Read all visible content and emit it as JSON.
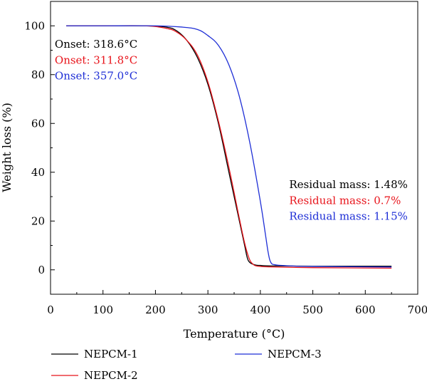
{
  "chart_data": {
    "type": "line",
    "xlabel": "Temperature (°C)",
    "ylabel": "Weight loss (%)",
    "xlim": [
      0,
      700
    ],
    "ylim": [
      -10,
      110
    ],
    "xticks": [
      0,
      100,
      200,
      300,
      400,
      500,
      600,
      700
    ],
    "yticks": [
      0,
      20,
      40,
      60,
      80,
      100
    ],
    "grid": false,
    "legend_position": "bottom",
    "annotations": [
      {
        "text": "Onset: 318.6°C",
        "color": "#000000",
        "x": 8,
        "y": 91
      },
      {
        "text": "Onset: 311.8°C",
        "color": "#e8141b",
        "x": 8,
        "y": 84.5
      },
      {
        "text": "Onset: 357.0°C",
        "color": "#1f2fd6",
        "x": 8,
        "y": 78
      },
      {
        "text": "Residual mass: 1.48%",
        "color": "#000000",
        "x": 455,
        "y": 33.5
      },
      {
        "text": "Residual mass: 0.7%",
        "color": "#e8141b",
        "x": 455,
        "y": 27
      },
      {
        "text": "Residual mass: 1.15%",
        "color": "#1f2fd6",
        "x": 455,
        "y": 20.5
      }
    ],
    "series": [
      {
        "name": "NEPCM-1",
        "color": "#000000",
        "x": [
          30,
          100,
          180,
          220,
          240,
          260,
          280,
          300,
          320,
          340,
          360,
          370,
          375,
          380,
          390,
          400,
          420,
          500,
          650
        ],
        "y": [
          100,
          100,
          100,
          99.5,
          98,
          94,
          87,
          76,
          60,
          40,
          20,
          10,
          5,
          3,
          2,
          1.8,
          1.6,
          1.5,
          1.48
        ]
      },
      {
        "name": "NEPCM-2",
        "color": "#e8141b",
        "x": [
          30,
          100,
          180,
          220,
          240,
          260,
          280,
          300,
          320,
          340,
          360,
          370,
          378,
          385,
          395,
          420,
          500,
          650
        ],
        "y": [
          100,
          100,
          100,
          99,
          97.5,
          94,
          88,
          77,
          61,
          42,
          21,
          11,
          5,
          2.5,
          1.5,
          1.2,
          0.9,
          0.7
        ]
      },
      {
        "name": "NEPCM-3",
        "color": "#1f2fd6",
        "x": [
          30,
          100,
          200,
          250,
          280,
          300,
          320,
          340,
          360,
          380,
          400,
          410,
          415,
          420,
          430,
          460,
          500,
          650
        ],
        "y": [
          100,
          100,
          100,
          99.5,
          98.5,
          96,
          92,
          84,
          71,
          52,
          28,
          14,
          7,
          3,
          2,
          1.6,
          1.4,
          1.15
        ]
      }
    ]
  }
}
